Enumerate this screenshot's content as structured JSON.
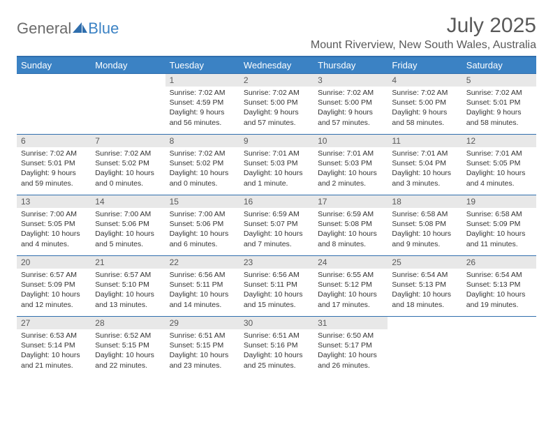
{
  "brand": {
    "text1": "General",
    "text2": "Blue"
  },
  "title": "July 2025",
  "location": "Mount Riverview, New South Wales, Australia",
  "colors": {
    "header_bg": "#3b82c4",
    "header_text": "#ffffff",
    "border": "#2f6ead",
    "daynum_bg": "#e8e8e8",
    "text": "#333333",
    "muted": "#595959"
  },
  "weekdays": [
    "Sunday",
    "Monday",
    "Tuesday",
    "Wednesday",
    "Thursday",
    "Friday",
    "Saturday"
  ],
  "weeks": [
    [
      null,
      null,
      {
        "n": "1",
        "sr": "Sunrise: 7:02 AM",
        "ss": "Sunset: 4:59 PM",
        "d1": "Daylight: 9 hours",
        "d2": "and 56 minutes."
      },
      {
        "n": "2",
        "sr": "Sunrise: 7:02 AM",
        "ss": "Sunset: 5:00 PM",
        "d1": "Daylight: 9 hours",
        "d2": "and 57 minutes."
      },
      {
        "n": "3",
        "sr": "Sunrise: 7:02 AM",
        "ss": "Sunset: 5:00 PM",
        "d1": "Daylight: 9 hours",
        "d2": "and 57 minutes."
      },
      {
        "n": "4",
        "sr": "Sunrise: 7:02 AM",
        "ss": "Sunset: 5:00 PM",
        "d1": "Daylight: 9 hours",
        "d2": "and 58 minutes."
      },
      {
        "n": "5",
        "sr": "Sunrise: 7:02 AM",
        "ss": "Sunset: 5:01 PM",
        "d1": "Daylight: 9 hours",
        "d2": "and 58 minutes."
      }
    ],
    [
      {
        "n": "6",
        "sr": "Sunrise: 7:02 AM",
        "ss": "Sunset: 5:01 PM",
        "d1": "Daylight: 9 hours",
        "d2": "and 59 minutes."
      },
      {
        "n": "7",
        "sr": "Sunrise: 7:02 AM",
        "ss": "Sunset: 5:02 PM",
        "d1": "Daylight: 10 hours",
        "d2": "and 0 minutes."
      },
      {
        "n": "8",
        "sr": "Sunrise: 7:02 AM",
        "ss": "Sunset: 5:02 PM",
        "d1": "Daylight: 10 hours",
        "d2": "and 0 minutes."
      },
      {
        "n": "9",
        "sr": "Sunrise: 7:01 AM",
        "ss": "Sunset: 5:03 PM",
        "d1": "Daylight: 10 hours",
        "d2": "and 1 minute."
      },
      {
        "n": "10",
        "sr": "Sunrise: 7:01 AM",
        "ss": "Sunset: 5:03 PM",
        "d1": "Daylight: 10 hours",
        "d2": "and 2 minutes."
      },
      {
        "n": "11",
        "sr": "Sunrise: 7:01 AM",
        "ss": "Sunset: 5:04 PM",
        "d1": "Daylight: 10 hours",
        "d2": "and 3 minutes."
      },
      {
        "n": "12",
        "sr": "Sunrise: 7:01 AM",
        "ss": "Sunset: 5:05 PM",
        "d1": "Daylight: 10 hours",
        "d2": "and 4 minutes."
      }
    ],
    [
      {
        "n": "13",
        "sr": "Sunrise: 7:00 AM",
        "ss": "Sunset: 5:05 PM",
        "d1": "Daylight: 10 hours",
        "d2": "and 4 minutes."
      },
      {
        "n": "14",
        "sr": "Sunrise: 7:00 AM",
        "ss": "Sunset: 5:06 PM",
        "d1": "Daylight: 10 hours",
        "d2": "and 5 minutes."
      },
      {
        "n": "15",
        "sr": "Sunrise: 7:00 AM",
        "ss": "Sunset: 5:06 PM",
        "d1": "Daylight: 10 hours",
        "d2": "and 6 minutes."
      },
      {
        "n": "16",
        "sr": "Sunrise: 6:59 AM",
        "ss": "Sunset: 5:07 PM",
        "d1": "Daylight: 10 hours",
        "d2": "and 7 minutes."
      },
      {
        "n": "17",
        "sr": "Sunrise: 6:59 AM",
        "ss": "Sunset: 5:08 PM",
        "d1": "Daylight: 10 hours",
        "d2": "and 8 minutes."
      },
      {
        "n": "18",
        "sr": "Sunrise: 6:58 AM",
        "ss": "Sunset: 5:08 PM",
        "d1": "Daylight: 10 hours",
        "d2": "and 9 minutes."
      },
      {
        "n": "19",
        "sr": "Sunrise: 6:58 AM",
        "ss": "Sunset: 5:09 PM",
        "d1": "Daylight: 10 hours",
        "d2": "and 11 minutes."
      }
    ],
    [
      {
        "n": "20",
        "sr": "Sunrise: 6:57 AM",
        "ss": "Sunset: 5:09 PM",
        "d1": "Daylight: 10 hours",
        "d2": "and 12 minutes."
      },
      {
        "n": "21",
        "sr": "Sunrise: 6:57 AM",
        "ss": "Sunset: 5:10 PM",
        "d1": "Daylight: 10 hours",
        "d2": "and 13 minutes."
      },
      {
        "n": "22",
        "sr": "Sunrise: 6:56 AM",
        "ss": "Sunset: 5:11 PM",
        "d1": "Daylight: 10 hours",
        "d2": "and 14 minutes."
      },
      {
        "n": "23",
        "sr": "Sunrise: 6:56 AM",
        "ss": "Sunset: 5:11 PM",
        "d1": "Daylight: 10 hours",
        "d2": "and 15 minutes."
      },
      {
        "n": "24",
        "sr": "Sunrise: 6:55 AM",
        "ss": "Sunset: 5:12 PM",
        "d1": "Daylight: 10 hours",
        "d2": "and 17 minutes."
      },
      {
        "n": "25",
        "sr": "Sunrise: 6:54 AM",
        "ss": "Sunset: 5:13 PM",
        "d1": "Daylight: 10 hours",
        "d2": "and 18 minutes."
      },
      {
        "n": "26",
        "sr": "Sunrise: 6:54 AM",
        "ss": "Sunset: 5:13 PM",
        "d1": "Daylight: 10 hours",
        "d2": "and 19 minutes."
      }
    ],
    [
      {
        "n": "27",
        "sr": "Sunrise: 6:53 AM",
        "ss": "Sunset: 5:14 PM",
        "d1": "Daylight: 10 hours",
        "d2": "and 21 minutes."
      },
      {
        "n": "28",
        "sr": "Sunrise: 6:52 AM",
        "ss": "Sunset: 5:15 PM",
        "d1": "Daylight: 10 hours",
        "d2": "and 22 minutes."
      },
      {
        "n": "29",
        "sr": "Sunrise: 6:51 AM",
        "ss": "Sunset: 5:15 PM",
        "d1": "Daylight: 10 hours",
        "d2": "and 23 minutes."
      },
      {
        "n": "30",
        "sr": "Sunrise: 6:51 AM",
        "ss": "Sunset: 5:16 PM",
        "d1": "Daylight: 10 hours",
        "d2": "and 25 minutes."
      },
      {
        "n": "31",
        "sr": "Sunrise: 6:50 AM",
        "ss": "Sunset: 5:17 PM",
        "d1": "Daylight: 10 hours",
        "d2": "and 26 minutes."
      },
      null,
      null
    ]
  ]
}
